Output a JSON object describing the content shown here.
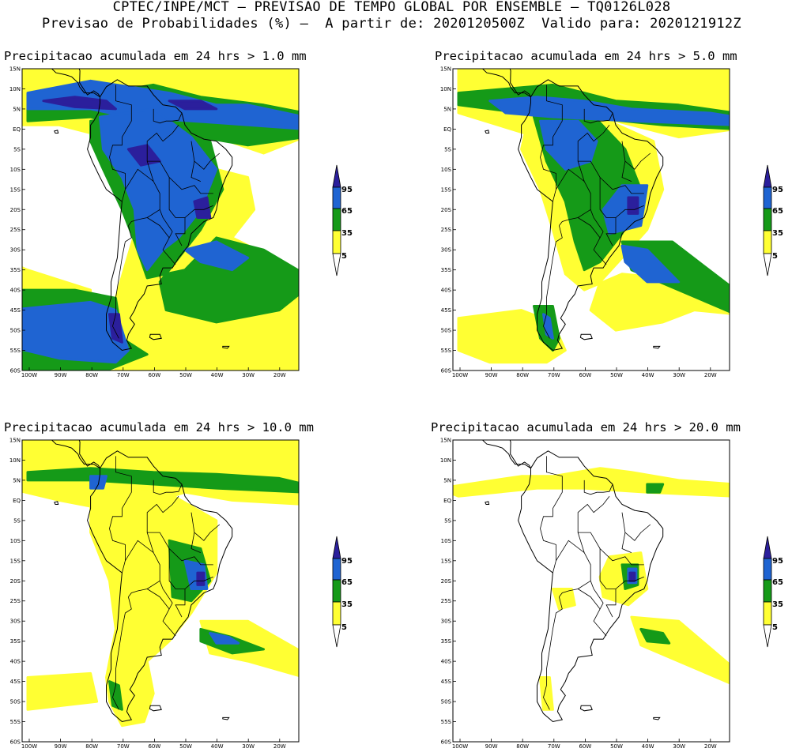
{
  "header": {
    "line1": "CPTEC/INPE/MCT — PREVISAO DE TEMPO GLOBAL POR ENSEMBLE — TQ0126L028",
    "line2": "Previsao de Probabilidades (%) —  A partir de: 2020120500Z  Valido para: 2020121912Z"
  },
  "panels": [
    {
      "title": "Precipitacao acumulada em 24 hrs > 1.0 mm",
      "threshold_mm": 1.0
    },
    {
      "title": "Precipitacao acumulada em 24 hrs > 5.0 mm",
      "threshold_mm": 5.0
    },
    {
      "title": "Precipitacao acumulada em 24 hrs > 10.0 mm",
      "threshold_mm": 10.0
    },
    {
      "title": "Precipitacao acumulada em 24 hrs > 20.0 mm",
      "threshold_mm": 20.0
    }
  ],
  "axes": {
    "lat_labels": [
      "15N",
      "10N",
      "5N",
      "EQ",
      "5S",
      "10S",
      "15S",
      "20S",
      "25S",
      "30S",
      "35S",
      "40S",
      "45S",
      "50S",
      "55S",
      "60S"
    ],
    "lon_labels": [
      "100W",
      "90W",
      "80W",
      "70W",
      "60W",
      "50W",
      "40W",
      "30W",
      "20W"
    ]
  },
  "legend": {
    "labels": [
      "95",
      "65",
      "35",
      "5"
    ],
    "colors": {
      "yellow": "#ffff33",
      "green": "#159a18",
      "blue": "#1f64d2",
      "navy": "#2b1f9c",
      "land": "#ffffff",
      "coast": "#000000"
    }
  }
}
